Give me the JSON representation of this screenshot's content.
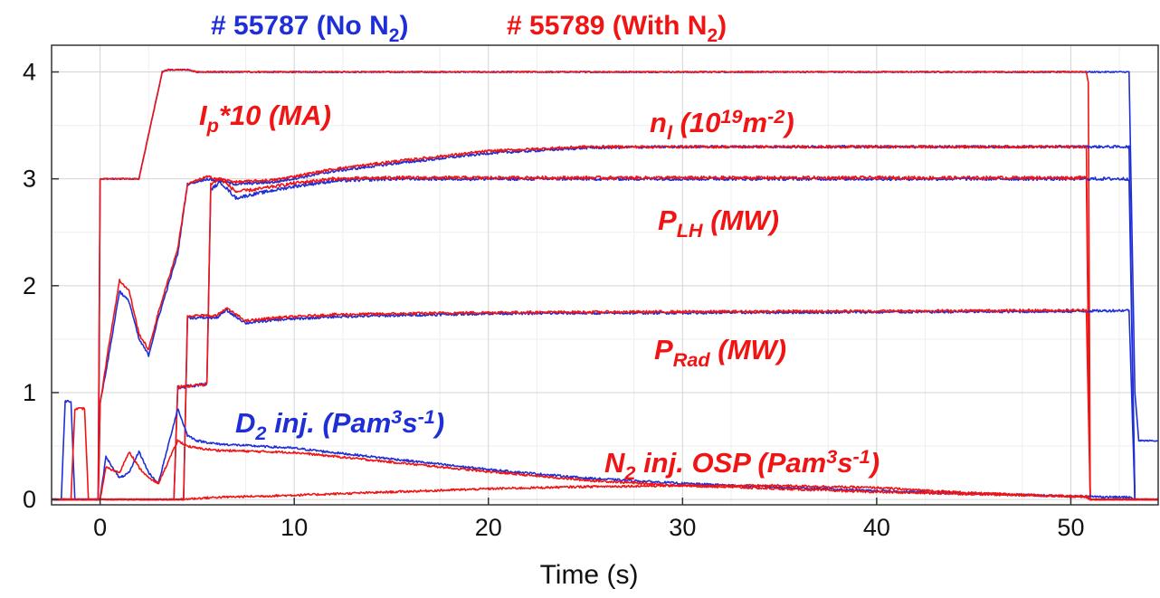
{
  "chart_data": {
    "type": "line",
    "xlabel": "Time (s)",
    "ylabel": "",
    "xlim": [
      -2.5,
      54.5
    ],
    "ylim": [
      -0.05,
      4.25
    ],
    "x_ticks": [
      0,
      10,
      20,
      30,
      40,
      50
    ],
    "y_ticks": [
      0,
      1,
      2,
      3,
      4
    ],
    "grid": true,
    "legend_position": "top",
    "legend": [
      {
        "pre": "# 55787 (No N",
        "sub": "2",
        "post": ")",
        "color": "#1f2fd6"
      },
      {
        "pre": "# 55789 (With N",
        "sub": "2",
        "post": ")",
        "color": "#f01414"
      }
    ],
    "annotations": [
      {
        "color": "#f01414",
        "parts": [
          {
            "t": "I"
          },
          {
            "t": "p",
            "s": "sub"
          },
          {
            "t": "*10 (MA)"
          }
        ]
      },
      {
        "color": "#f01414",
        "parts": [
          {
            "t": "n"
          },
          {
            "t": "l",
            "s": "sub"
          },
          {
            "t": " (10"
          },
          {
            "t": "19",
            "s": "sup"
          },
          {
            "t": "m"
          },
          {
            "t": "-2",
            "s": "sup"
          },
          {
            "t": ")"
          }
        ]
      },
      {
        "color": "#f01414",
        "parts": [
          {
            "t": "P"
          },
          {
            "t": "LH",
            "s": "sub"
          },
          {
            "t": " (MW)"
          }
        ]
      },
      {
        "color": "#f01414",
        "parts": [
          {
            "t": "P"
          },
          {
            "t": "Rad",
            "s": "sub"
          },
          {
            "t": " (MW)"
          }
        ]
      },
      {
        "color": "#1f2fd6",
        "parts": [
          {
            "t": "D"
          },
          {
            "t": "2",
            "s": "sub"
          },
          {
            "t": " inj. (Pam"
          },
          {
            "t": "3",
            "s": "sup"
          },
          {
            "t": "s"
          },
          {
            "t": "-1",
            "s": "sup"
          },
          {
            "t": ")"
          }
        ]
      },
      {
        "color": "#f01414",
        "parts": [
          {
            "t": "N"
          },
          {
            "t": "2",
            "s": "sub"
          },
          {
            "t": " inj. OSP (Pam"
          },
          {
            "t": "3",
            "s": "sup"
          },
          {
            "t": "s"
          },
          {
            "t": "-1",
            "s": "sup"
          },
          {
            "t": ")"
          }
        ]
      }
    ],
    "series": [
      {
        "shot": "55787",
        "quantity": "Ip*10",
        "color": "#1f2fd6",
        "noise": 0.006,
        "x": [
          -2.5,
          -0.1,
          0.0,
          0.2,
          2.0,
          3.2,
          3.5,
          4.5,
          5.0,
          53.0,
          53.3,
          53.5,
          54.5
        ],
        "y": [
          0.0,
          0.0,
          3.0,
          3.0,
          3.0,
          4.0,
          4.02,
          4.02,
          4.0,
          4.0,
          1.0,
          0.55,
          0.55
        ]
      },
      {
        "shot": "55789",
        "quantity": "Ip*10",
        "color": "#f01414",
        "noise": 0.006,
        "x": [
          -2.5,
          -0.1,
          0.0,
          0.2,
          2.0,
          3.2,
          3.5,
          4.5,
          5.0,
          50.8,
          50.9,
          51.0,
          54.5
        ],
        "y": [
          0.0,
          0.0,
          3.0,
          3.0,
          3.0,
          4.0,
          4.02,
          4.02,
          4.0,
          4.0,
          3.9,
          0.0,
          0.0
        ]
      },
      {
        "shot": "55787",
        "quantity": "nl",
        "color": "#1f2fd6",
        "noise": 0.012,
        "x": [
          -2.5,
          -0.1,
          0.0,
          0.5,
          1.0,
          1.5,
          2.0,
          2.5,
          3.0,
          4.0,
          4.5,
          5.5,
          7.0,
          9.0,
          12.0,
          15.0,
          20.0,
          25.0,
          30.0,
          40.0,
          50.0,
          53.0,
          53.3,
          54.5
        ],
        "y": [
          0.0,
          0.0,
          0.9,
          1.4,
          1.95,
          1.85,
          1.5,
          1.35,
          1.7,
          2.3,
          2.95,
          3.0,
          2.95,
          2.97,
          3.07,
          3.14,
          3.24,
          3.29,
          3.3,
          3.3,
          3.3,
          3.3,
          0.0,
          0.0
        ]
      },
      {
        "shot": "55789",
        "quantity": "nl",
        "color": "#f01414",
        "noise": 0.012,
        "x": [
          -2.5,
          -0.1,
          0.0,
          0.5,
          1.0,
          1.5,
          2.0,
          2.5,
          3.0,
          4.0,
          4.5,
          5.5,
          7.0,
          9.0,
          12.0,
          15.0,
          20.0,
          25.0,
          30.0,
          40.0,
          50.0,
          50.8,
          51.0,
          54.5
        ],
        "y": [
          0.0,
          0.0,
          0.9,
          1.5,
          2.05,
          1.95,
          1.55,
          1.4,
          1.75,
          2.35,
          2.95,
          3.02,
          2.97,
          2.99,
          3.09,
          3.16,
          3.26,
          3.3,
          3.3,
          3.3,
          3.3,
          3.3,
          0.0,
          0.0
        ]
      },
      {
        "shot": "55787",
        "quantity": "PLH",
        "color": "#1f2fd6",
        "noise": 0.015,
        "x": [
          -2.5,
          3.8,
          4.0,
          5.5,
          5.7,
          6.2,
          7.0,
          8.0,
          10.0,
          12.0,
          15.0,
          20.0,
          50.0,
          53.0,
          53.3,
          54.5
        ],
        "y": [
          0.0,
          0.0,
          1.05,
          1.08,
          2.9,
          2.97,
          2.82,
          2.86,
          2.93,
          2.98,
          3.0,
          3.0,
          3.0,
          3.0,
          0.0,
          0.0
        ]
      },
      {
        "shot": "55789",
        "quantity": "PLH",
        "color": "#f01414",
        "noise": 0.015,
        "x": [
          -2.5,
          3.8,
          4.0,
          5.5,
          5.7,
          6.2,
          7.0,
          8.0,
          10.0,
          12.0,
          15.0,
          20.0,
          50.0,
          50.8,
          51.0,
          54.5
        ],
        "y": [
          0.0,
          0.0,
          1.05,
          1.08,
          2.95,
          3.0,
          2.88,
          2.9,
          2.96,
          3.0,
          3.01,
          3.01,
          3.01,
          3.01,
          0.0,
          0.0
        ]
      },
      {
        "shot": "55787",
        "quantity": "PRad",
        "color": "#1f2fd6",
        "noise": 0.012,
        "x": [
          -2.5,
          4.3,
          4.5,
          5.7,
          6.0,
          6.5,
          7.5,
          8.0,
          9.0,
          12.0,
          20.0,
          50.0,
          53.0,
          53.3,
          54.5
        ],
        "y": [
          0.0,
          0.0,
          1.7,
          1.7,
          1.7,
          1.77,
          1.65,
          1.66,
          1.68,
          1.71,
          1.74,
          1.76,
          1.77,
          0.0,
          0.0
        ]
      },
      {
        "shot": "55789",
        "quantity": "PRad",
        "color": "#f01414",
        "noise": 0.012,
        "x": [
          -2.5,
          4.3,
          4.5,
          5.7,
          6.0,
          6.5,
          7.5,
          8.0,
          9.0,
          12.0,
          20.0,
          50.0,
          50.8,
          51.0,
          54.5
        ],
        "y": [
          0.0,
          0.0,
          1.72,
          1.72,
          1.72,
          1.79,
          1.67,
          1.68,
          1.7,
          1.73,
          1.75,
          1.77,
          1.77,
          0.0,
          0.0
        ]
      },
      {
        "shot": "55787",
        "quantity": "D2 injection",
        "color": "#1f2fd6",
        "noise": 0.01,
        "x": [
          -2.5,
          -2.0,
          -1.8,
          -1.5,
          -1.3,
          -1.0,
          0.0,
          0.3,
          1.0,
          1.5,
          2.0,
          2.5,
          3.0,
          4.0,
          4.5,
          5.0,
          6.0,
          8.0,
          10.0,
          15.0,
          20.0,
          25.0,
          30.0,
          40.0,
          50.0,
          53.0,
          53.3,
          54.5
        ],
        "y": [
          0.0,
          0.0,
          0.92,
          0.92,
          0.0,
          0.0,
          0.0,
          0.4,
          0.2,
          0.25,
          0.45,
          0.25,
          0.15,
          0.85,
          0.6,
          0.55,
          0.52,
          0.5,
          0.48,
          0.38,
          0.28,
          0.2,
          0.15,
          0.08,
          0.03,
          0.02,
          0.0,
          0.0
        ]
      },
      {
        "shot": "55789",
        "quantity": "D2 injection",
        "color": "#f01414",
        "noise": 0.01,
        "x": [
          -2.5,
          -1.5,
          -1.3,
          -0.8,
          -0.6,
          0.0,
          0.3,
          1.0,
          1.5,
          2.0,
          2.5,
          3.0,
          4.0,
          4.5,
          5.0,
          6.0,
          8.0,
          10.0,
          15.0,
          20.0,
          25.0,
          30.0,
          40.0,
          50.0,
          50.8,
          51.0,
          54.5
        ],
        "y": [
          0.0,
          0.0,
          0.85,
          0.85,
          0.0,
          0.0,
          0.3,
          0.25,
          0.45,
          0.3,
          0.2,
          0.15,
          0.55,
          0.5,
          0.48,
          0.46,
          0.45,
          0.44,
          0.35,
          0.26,
          0.18,
          0.13,
          0.07,
          0.03,
          0.02,
          0.0,
          0.0
        ]
      },
      {
        "shot": "55789",
        "quantity": "N2 injection OSP",
        "color": "#f01414",
        "noise": 0.01,
        "x": [
          -2.5,
          4.0,
          6.0,
          10.0,
          15.0,
          20.0,
          25.0,
          30.0,
          35.0,
          40.0,
          45.0,
          50.0,
          50.8,
          51.0,
          54.5
        ],
        "y": [
          0.0,
          0.0,
          0.02,
          0.04,
          0.07,
          0.1,
          0.12,
          0.13,
          0.13,
          0.11,
          0.06,
          0.03,
          0.03,
          0.0,
          0.0
        ]
      }
    ]
  }
}
